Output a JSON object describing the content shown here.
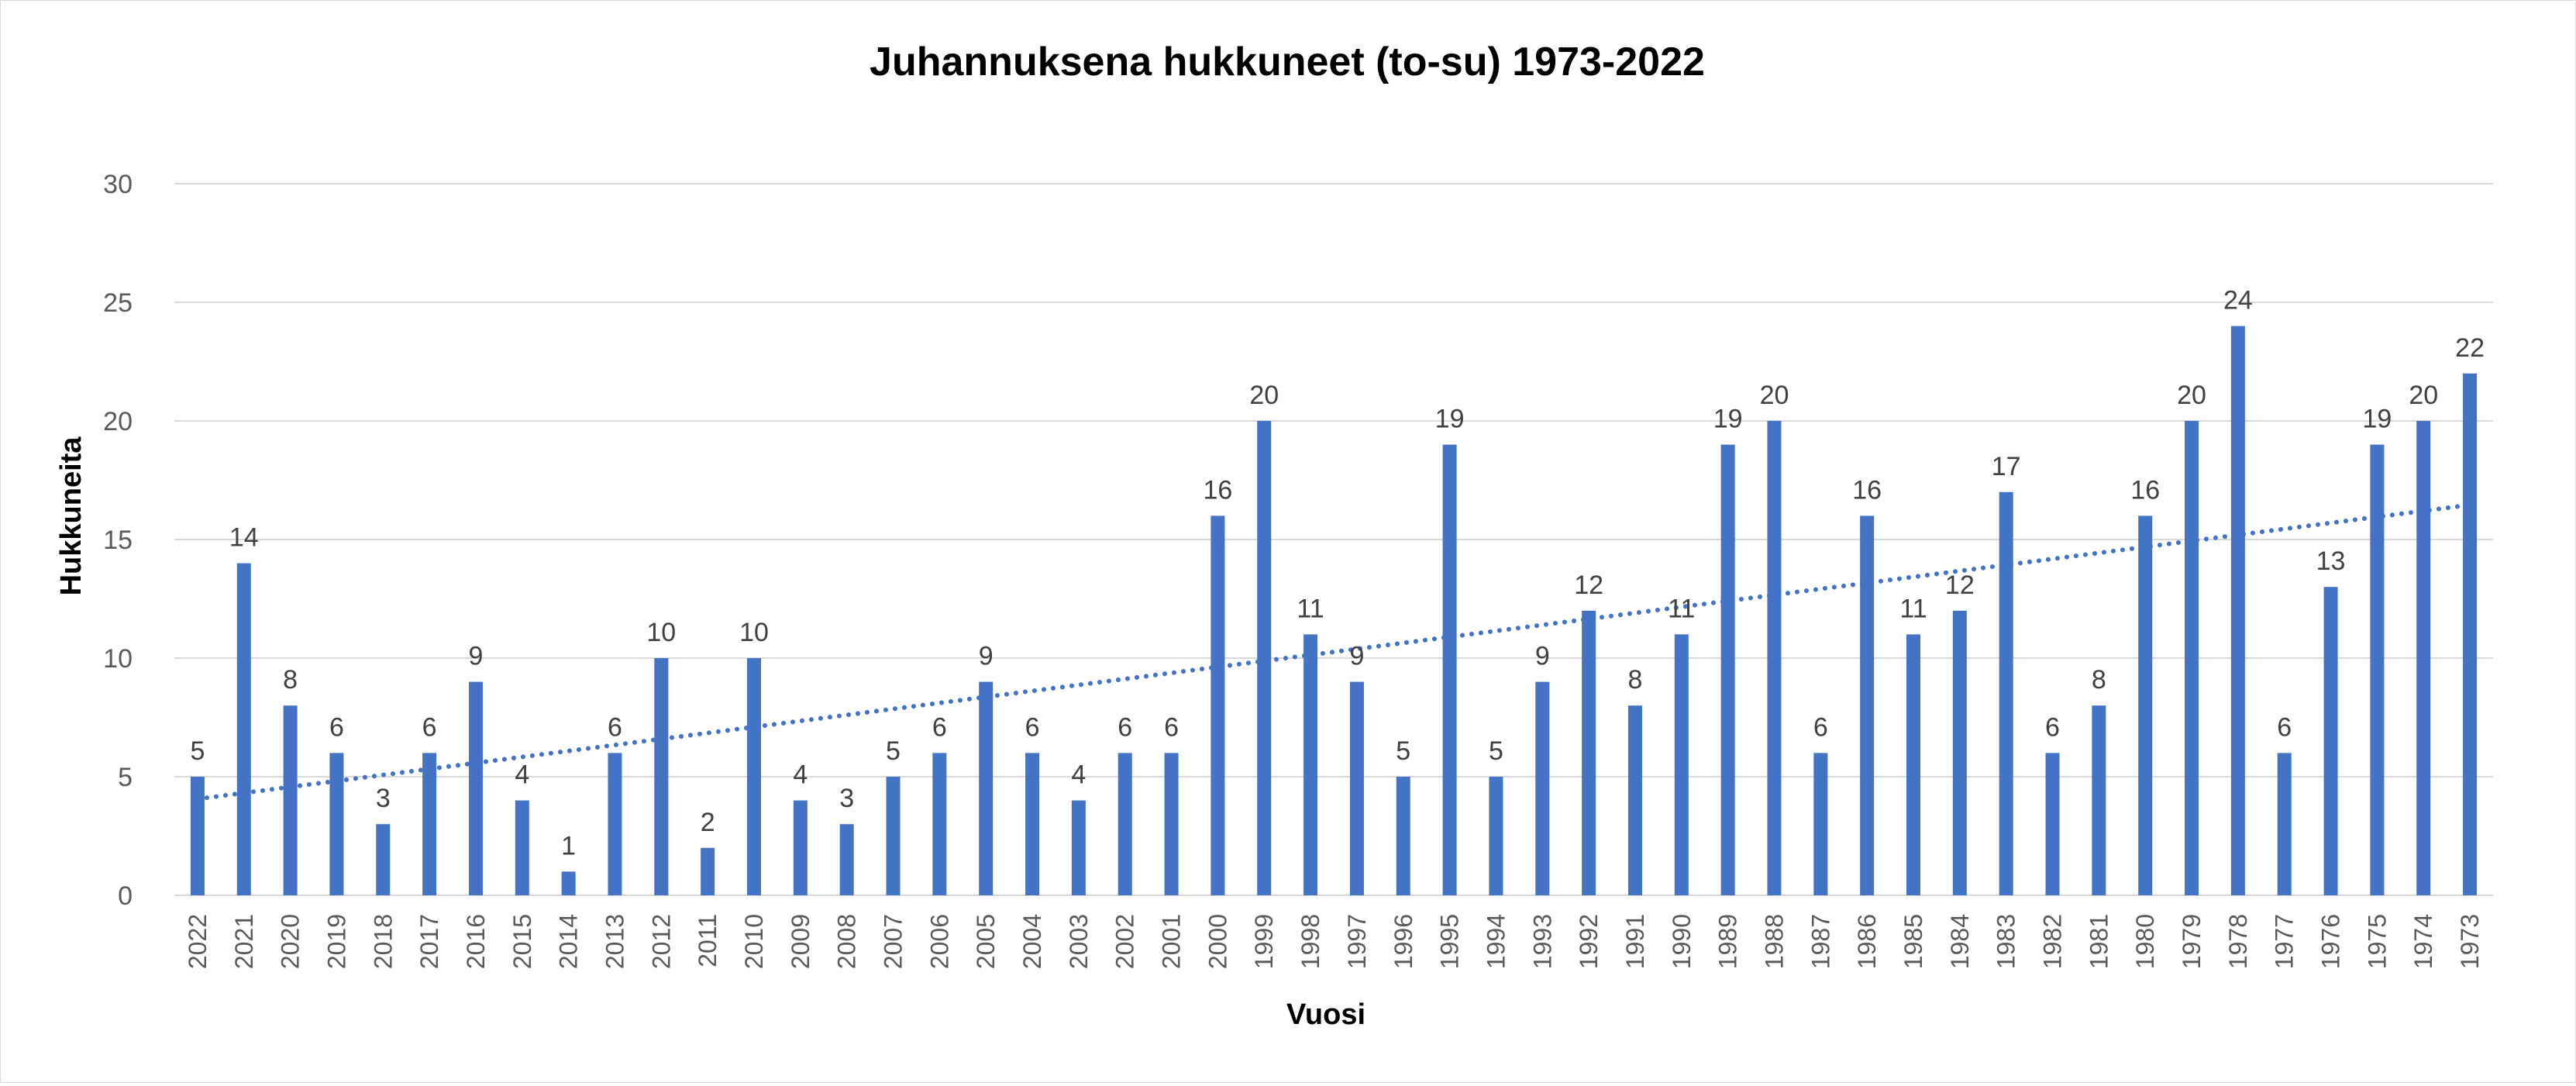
{
  "chart_data": {
    "type": "bar",
    "title": "Juhannuksena hukkuneet (to-su) 1973-2022",
    "xlabel": "Vuosi",
    "ylabel": "Hukkuneita",
    "ylim": [
      0,
      30
    ],
    "yticks": [
      0,
      5,
      10,
      15,
      20,
      25,
      30
    ],
    "grid": true,
    "legend": "none",
    "bar_color": "#4472C4",
    "trendline": {
      "type": "linear",
      "style": "dotted",
      "color": "#4472C4"
    },
    "categories": [
      "2022",
      "2021",
      "2020",
      "2019",
      "2018",
      "2017",
      "2016",
      "2015",
      "2014",
      "2013",
      "2012",
      "2011",
      "2010",
      "2009",
      "2008",
      "2007",
      "2006",
      "2005",
      "2004",
      "2003",
      "2002",
      "2001",
      "2000",
      "1999",
      "1998",
      "1997",
      "1996",
      "1995",
      "1994",
      "1993",
      "1992",
      "1991",
      "1990",
      "1989",
      "1988",
      "1987",
      "1986",
      "1985",
      "1984",
      "1983",
      "1982",
      "1981",
      "1980",
      "1979",
      "1978",
      "1977",
      "1976",
      "1975",
      "1974",
      "1973"
    ],
    "values": [
      5,
      14,
      8,
      6,
      3,
      6,
      9,
      4,
      1,
      6,
      10,
      2,
      10,
      4,
      3,
      5,
      6,
      9,
      6,
      4,
      6,
      6,
      16,
      20,
      11,
      9,
      5,
      19,
      5,
      9,
      12,
      8,
      11,
      19,
      20,
      6,
      16,
      11,
      12,
      17,
      6,
      8,
      16,
      20,
      24,
      6,
      13,
      19,
      20,
      22
    ]
  }
}
